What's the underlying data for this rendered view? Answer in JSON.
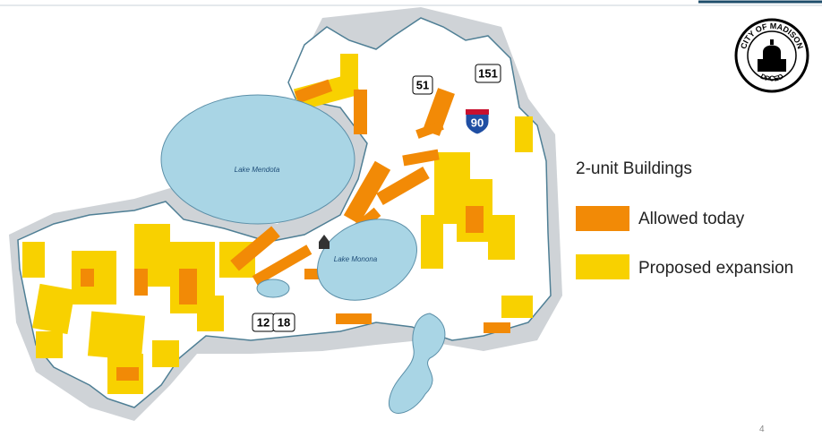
{
  "slide": {
    "legend": {
      "title": "2-unit Buildings",
      "items": [
        "Allowed today",
        "Proposed expansion"
      ]
    },
    "map": {
      "lakes": [
        "Lake Mendota",
        "Lake Monona"
      ],
      "highways": [
        "51",
        "151",
        "90",
        "12",
        "18"
      ]
    },
    "logo": {
      "top_text": "CITY OF MADISON",
      "bottom_text": "DPCED"
    },
    "page_number": "4"
  }
}
